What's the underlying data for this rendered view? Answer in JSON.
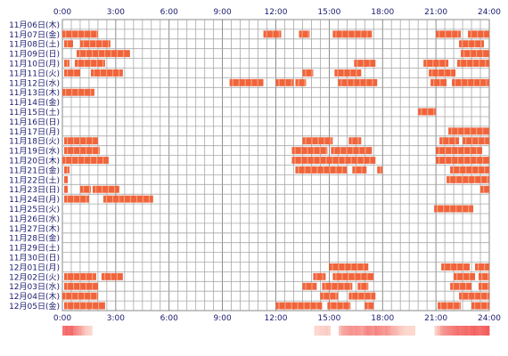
{
  "chart_data": {
    "type": "heatmap",
    "description_style": "activity timeline per day (rows) across 24 hours (columns)",
    "hour_ticks": [
      "0:00",
      "3:00",
      "6:00",
      "9:00",
      "12:00",
      "15:00",
      "18:00",
      "21:00",
      "24:00"
    ],
    "rows": [
      {
        "label": "11月06日(木)",
        "intervals": []
      },
      {
        "label": "11月07日(金)",
        "intervals": [
          [
            0.0,
            2.0
          ],
          [
            11.3,
            12.3
          ],
          [
            13.3,
            13.9
          ],
          [
            15.2,
            17.4
          ],
          [
            21.0,
            22.4
          ],
          [
            22.8,
            24.0
          ]
        ]
      },
      {
        "label": "11月08日(土)",
        "intervals": [
          [
            0.1,
            0.6
          ],
          [
            1.0,
            2.7
          ],
          [
            22.3,
            23.7
          ]
        ]
      },
      {
        "label": "11月09日(日)",
        "intervals": [
          [
            0.8,
            3.8
          ],
          [
            22.4,
            24.0
          ]
        ]
      },
      {
        "label": "11月10日(月)",
        "intervals": [
          [
            0.1,
            0.4
          ],
          [
            0.7,
            2.4
          ],
          [
            16.4,
            17.6
          ],
          [
            20.3,
            21.7
          ],
          [
            22.2,
            24.0
          ]
        ]
      },
      {
        "label": "11月11日(火)",
        "intervals": [
          [
            0.1,
            1.0
          ],
          [
            1.6,
            3.4
          ],
          [
            13.5,
            14.1
          ],
          [
            15.3,
            16.8
          ],
          [
            20.6,
            22.1
          ]
        ]
      },
      {
        "label": "11月12日(水)",
        "intervals": [
          [
            9.4,
            11.3
          ],
          [
            12.0,
            13.0
          ],
          [
            13.1,
            13.7
          ],
          [
            15.5,
            17.7
          ],
          [
            20.7,
            21.6
          ],
          [
            21.9,
            24.0
          ]
        ]
      },
      {
        "label": "11月13日(木)",
        "intervals": [
          [
            0.0,
            1.8
          ]
        ]
      },
      {
        "label": "11月14日(金)",
        "intervals": []
      },
      {
        "label": "11月15日(土)",
        "intervals": [
          [
            20.0,
            21.0
          ]
        ]
      },
      {
        "label": "11月16日(日)",
        "intervals": []
      },
      {
        "label": "11月17日(月)",
        "intervals": [
          [
            21.7,
            24.0
          ]
        ]
      },
      {
        "label": "11月18日(火)",
        "intervals": [
          [
            0.1,
            2.0
          ],
          [
            13.5,
            15.2
          ],
          [
            16.1,
            16.8
          ],
          [
            21.2,
            22.3
          ],
          [
            22.5,
            24.0
          ]
        ]
      },
      {
        "label": "11月19日(水)",
        "intervals": [
          [
            0.1,
            2.1
          ],
          [
            12.9,
            14.9
          ],
          [
            15.1,
            17.4
          ],
          [
            21.0,
            23.6
          ]
        ]
      },
      {
        "label": "11月20日(木)",
        "intervals": [
          [
            0.0,
            2.6
          ],
          [
            12.9,
            17.6
          ],
          [
            21.0,
            24.0
          ]
        ]
      },
      {
        "label": "11月21日(金)",
        "intervals": [
          [
            0.1,
            0.4
          ],
          [
            13.1,
            16.0
          ],
          [
            16.3,
            17.1
          ],
          [
            17.7,
            18.0
          ],
          [
            21.8,
            24.0
          ]
        ]
      },
      {
        "label": "11月22日(土)",
        "intervals": [
          [
            0.1,
            0.3
          ],
          [
            21.6,
            24.0
          ]
        ]
      },
      {
        "label": "11月23日(日)",
        "intervals": [
          [
            0.1,
            0.3
          ],
          [
            1.0,
            1.6
          ],
          [
            1.7,
            3.2
          ],
          [
            23.5,
            24.0
          ]
        ]
      },
      {
        "label": "11月24日(月)",
        "intervals": [
          [
            0.1,
            1.5
          ],
          [
            2.3,
            3.3
          ],
          [
            3.3,
            5.1
          ]
        ]
      },
      {
        "label": "11月25日(火)",
        "intervals": [
          [
            20.9,
            23.1
          ]
        ]
      },
      {
        "label": "11月26日(水)",
        "intervals": []
      },
      {
        "label": "11月27日(木)",
        "intervals": []
      },
      {
        "label": "11月28日(金)",
        "intervals": []
      },
      {
        "label": "11月29日(土)",
        "intervals": []
      },
      {
        "label": "11月30日(日)",
        "intervals": []
      },
      {
        "label": "12月01日(月)",
        "intervals": [
          [
            15.0,
            17.2
          ],
          [
            21.3,
            22.9
          ],
          [
            23.2,
            24.0
          ]
        ]
      },
      {
        "label": "12月02日(火)",
        "intervals": [
          [
            0.1,
            1.9
          ],
          [
            2.2,
            3.4
          ],
          [
            14.1,
            14.8
          ],
          [
            15.2,
            17.5
          ],
          [
            22.0,
            23.2
          ],
          [
            23.4,
            24.0
          ]
        ]
      },
      {
        "label": "12月03日(水)",
        "intervals": [
          [
            0.1,
            2.0
          ],
          [
            13.5,
            14.3
          ],
          [
            14.6,
            16.3
          ],
          [
            16.6,
            17.2
          ],
          [
            21.8,
            23.0
          ],
          [
            23.4,
            24.0
          ]
        ]
      },
      {
        "label": "12月04日(木)",
        "intervals": [
          [
            0.0,
            2.0
          ],
          [
            14.5,
            15.5
          ],
          [
            16.1,
            17.6
          ],
          [
            22.3,
            24.0
          ]
        ]
      },
      {
        "label": "12月05日(金)",
        "intervals": [
          [
            0.1,
            2.4
          ],
          [
            12.0,
            14.6
          ],
          [
            14.9,
            16.2
          ],
          [
            17.0,
            17.5
          ],
          [
            21.1,
            22.4
          ],
          [
            23.0,
            24.0
          ]
        ]
      }
    ],
    "summary_band_levels": [
      0.8,
      0.9,
      0.85,
      0.9,
      0.7,
      0.6,
      0.5,
      0.35,
      0.2,
      0.15,
      0.1,
      0.0,
      0.0,
      0.0,
      0.0,
      0.0,
      0.0,
      0.0,
      0.0,
      0.0,
      0.0,
      0.0,
      0.0,
      0.0,
      0.0,
      0.0,
      0.0,
      0.0,
      0.0,
      0.0,
      0.0,
      0.0,
      0.0,
      0.0,
      0.0,
      0.0,
      0.0,
      0.0,
      0.0,
      0.0,
      0.0,
      0.0,
      0.0,
      0.0,
      0.0,
      0.0,
      0.0,
      0.0,
      0.0,
      0.0,
      0.0,
      0.0,
      0.0,
      0.0,
      0.0,
      0.0,
      0.0,
      0.0,
      0.0,
      0.0,
      0.0,
      0.0,
      0.0,
      0.0,
      0.0,
      0.0,
      0.0,
      0.0,
      0.0,
      0.0,
      0.0,
      0.0,
      0.0,
      0.0,
      0.0,
      0.0,
      0.0,
      0.0,
      0.0,
      0.0,
      0.0,
      0.0,
      0.0,
      0.0,
      0.0,
      0.0,
      0.0,
      0.0,
      0.0,
      0.0,
      0.0,
      0.0,
      0.1,
      0.1,
      0.15,
      0.15,
      0.2,
      0.15,
      0.0,
      0.0,
      0.0,
      0.3,
      0.45,
      0.5,
      0.55,
      0.6,
      0.55,
      0.6,
      0.55,
      0.5,
      0.6,
      0.7,
      0.65,
      0.6,
      0.7,
      0.65,
      0.6,
      0.55,
      0.6,
      0.5,
      0.4,
      0.35,
      0.3,
      0.2,
      0.15,
      0.1,
      0.1,
      0.1,
      0.1,
      0.0,
      0.0,
      0.0,
      0.0,
      0.0,
      0.0,
      0.0,
      0.15,
      0.3,
      0.5,
      0.6,
      0.65,
      0.7,
      0.75,
      0.8,
      0.85,
      0.8,
      0.85,
      0.9,
      0.85,
      0.9,
      0.95,
      0.9,
      0.85,
      0.9,
      0.95,
      1.0
    ],
    "colors": {
      "bar_fill": "#f0643c",
      "bar_light": "#f7a07c",
      "grid": "#8a8a8a",
      "label": "#1a1a6e",
      "summary_high": "#f25c5c",
      "summary_low": "#fde6dc"
    }
  }
}
